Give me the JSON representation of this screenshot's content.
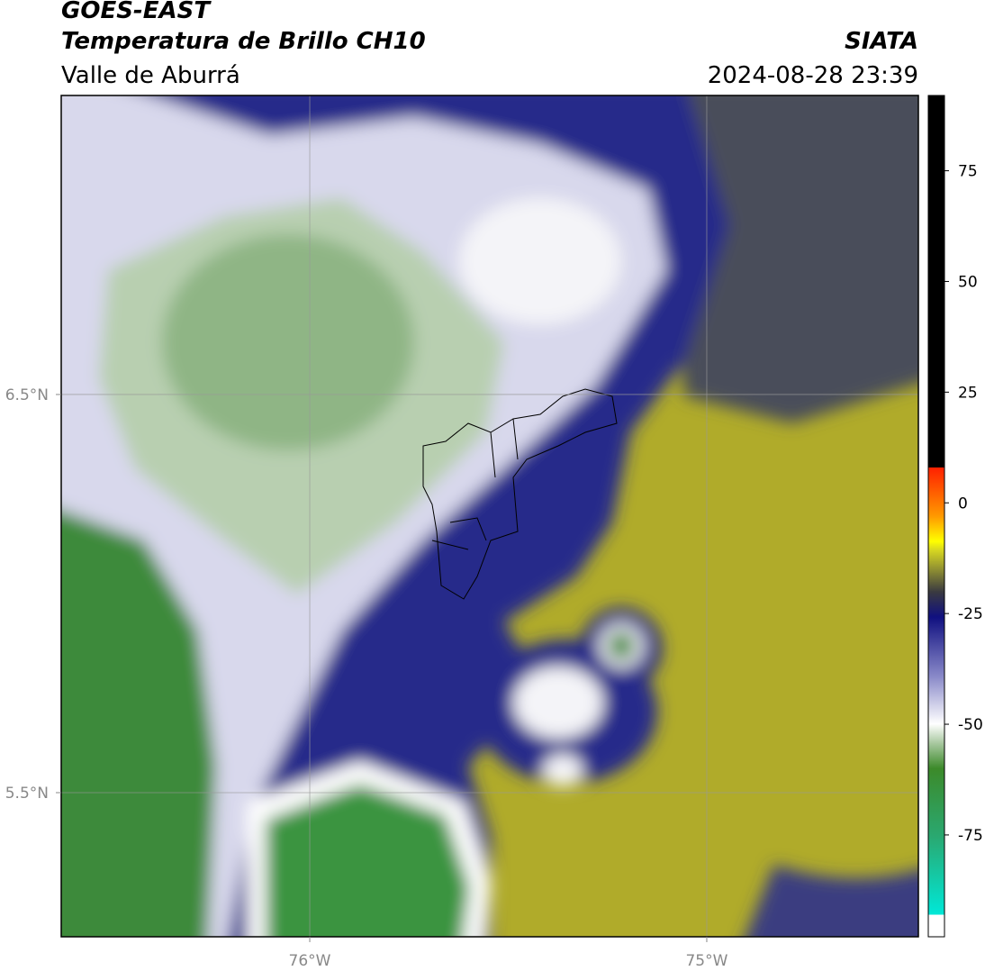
{
  "header": {
    "title": "GOES-EAST",
    "subtitle": "Temperatura de Brillo CH10",
    "region": "Valle de Aburrá",
    "source": "SIATA",
    "timestamp": "2024-08-28 23:39"
  },
  "map": {
    "lonlim": [
      -76.626,
      -74.467
    ],
    "latlim": [
      5.138,
      7.251
    ],
    "lon_ticks": [
      {
        "value": -76,
        "label": "76°W"
      },
      {
        "value": -75,
        "label": "75°W"
      }
    ],
    "lat_ticks": [
      {
        "value": 6.5,
        "label": "6.5°N"
      },
      {
        "value": 5.5,
        "label": "5.5°N"
      }
    ],
    "grid": true
  },
  "colorbar": {
    "lim": [
      -98,
      92
    ],
    "ticks": [
      75,
      50,
      25,
      0,
      -25,
      -50,
      -75
    ]
  }
}
